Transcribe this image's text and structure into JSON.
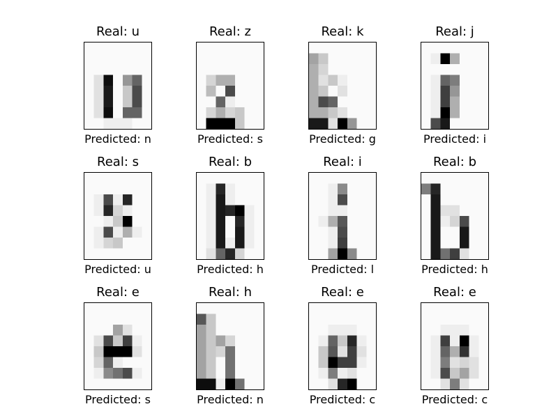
{
  "chart_data": {
    "type": "heatmap",
    "colormap": "gray_r",
    "rows": 8,
    "cols": 7,
    "panels": [
      {
        "title": "Real: u",
        "xlabel": "Predicted: n",
        "cells": [
          [
            0,
            0,
            0,
            0,
            0,
            0,
            0
          ],
          [
            0,
            0,
            0,
            0,
            0,
            0,
            0
          ],
          [
            0,
            0,
            0,
            0,
            0,
            0,
            0
          ],
          [
            0,
            0.1,
            0.95,
            0,
            0.4,
            0.6,
            0
          ],
          [
            0,
            0.1,
            0.9,
            0,
            0.2,
            0.7,
            0
          ],
          [
            0,
            0.1,
            0.9,
            0,
            0.2,
            0.7,
            0
          ],
          [
            0,
            0.1,
            0.95,
            0,
            0.6,
            0.6,
            0
          ],
          [
            0,
            0,
            0.05,
            0.05,
            0.05,
            0,
            0
          ]
        ]
      },
      {
        "title": "Real: z",
        "xlabel": "Predicted: s",
        "cells": [
          [
            0,
            0,
            0,
            0,
            0,
            0,
            0
          ],
          [
            0,
            0,
            0,
            0,
            0,
            0,
            0
          ],
          [
            0,
            0,
            0,
            0,
            0,
            0,
            0
          ],
          [
            0,
            0.15,
            0.3,
            0.3,
            0,
            0,
            0
          ],
          [
            0,
            0.25,
            0,
            0.7,
            0,
            0,
            0
          ],
          [
            0,
            0,
            0.6,
            0.05,
            0,
            0,
            0
          ],
          [
            0,
            0.15,
            0.3,
            0.15,
            0.2,
            0,
            0
          ],
          [
            0,
            1,
            1,
            1,
            0.2,
            0,
            0
          ]
        ]
      },
      {
        "title": "Real: k",
        "xlabel": "Predicted: g",
        "cells": [
          [
            0,
            0,
            0,
            0,
            0,
            0,
            0
          ],
          [
            0.35,
            0.2,
            0,
            0,
            0,
            0,
            0
          ],
          [
            0.3,
            0.15,
            0,
            0,
            0,
            0,
            0
          ],
          [
            0.3,
            0.1,
            0.2,
            0.05,
            0,
            0,
            0
          ],
          [
            0.3,
            0.2,
            0,
            0.1,
            0,
            0,
            0
          ],
          [
            0.3,
            0.7,
            0.6,
            0,
            0,
            0,
            0
          ],
          [
            0.3,
            0.3,
            0.2,
            0.1,
            0,
            0,
            0
          ],
          [
            0.9,
            0.9,
            0.1,
            1,
            0.4,
            0,
            0
          ]
        ]
      },
      {
        "title": "Real: j",
        "xlabel": "Predicted: i",
        "cells": [
          [
            0,
            0,
            0,
            0,
            0,
            0,
            0
          ],
          [
            0,
            0.05,
            1,
            0.3,
            0,
            0,
            0
          ],
          [
            0,
            0,
            0,
            0,
            0,
            0,
            0
          ],
          [
            0,
            0.05,
            0.6,
            0.5,
            0,
            0,
            0
          ],
          [
            0,
            0.05,
            0.75,
            0.4,
            0,
            0,
            0
          ],
          [
            0,
            0.05,
            0.75,
            0.3,
            0,
            0,
            0
          ],
          [
            0,
            0.05,
            1,
            0.3,
            0,
            0,
            0
          ],
          [
            0,
            0.7,
            0.9,
            0,
            0,
            0,
            0
          ]
        ]
      },
      {
        "title": "Real: s",
        "xlabel": "Predicted: u",
        "cells": [
          [
            0,
            0,
            0,
            0,
            0,
            0,
            0
          ],
          [
            0,
            0,
            0,
            0,
            0,
            0,
            0
          ],
          [
            0,
            0.05,
            0.7,
            0.05,
            0.85,
            0,
            0
          ],
          [
            0,
            0.05,
            0.85,
            0.15,
            0.05,
            0,
            0
          ],
          [
            0,
            0,
            0.05,
            0.2,
            1,
            0,
            0
          ],
          [
            0,
            0.05,
            0.7,
            0.05,
            0.3,
            0.05,
            0
          ],
          [
            0,
            0.05,
            0.15,
            0.2,
            0,
            0,
            0
          ],
          [
            0,
            0,
            0,
            0,
            0,
            0,
            0
          ]
        ]
      },
      {
        "title": "Real: b",
        "xlabel": "Predicted: h",
        "cells": [
          [
            0,
            0,
            0,
            0,
            0,
            0,
            0
          ],
          [
            0,
            0.05,
            0.85,
            0.05,
            0,
            0,
            0
          ],
          [
            0,
            0.05,
            0.9,
            0.05,
            0,
            0,
            0
          ],
          [
            0,
            0.05,
            0.9,
            0.85,
            1,
            0.05,
            0
          ],
          [
            0,
            0.05,
            0.9,
            0,
            0.85,
            0.05,
            0
          ],
          [
            0,
            0.05,
            0.9,
            0,
            0.9,
            0.05,
            0
          ],
          [
            0,
            0.05,
            0.9,
            0.05,
            0.9,
            0.05,
            0
          ],
          [
            0,
            0.1,
            0.6,
            0.85,
            0.15,
            0,
            0
          ]
        ]
      },
      {
        "title": "Real: i",
        "xlabel": "Predicted: l",
        "cells": [
          [
            0,
            0,
            0,
            0,
            0,
            0,
            0
          ],
          [
            0,
            0,
            0.05,
            0.45,
            0,
            0,
            0
          ],
          [
            0,
            0,
            0.05,
            0.7,
            0,
            0,
            0
          ],
          [
            0,
            0,
            0.05,
            0.05,
            0,
            0,
            0
          ],
          [
            0,
            0.05,
            0.3,
            0.65,
            0,
            0,
            0
          ],
          [
            0,
            0,
            0.05,
            0.7,
            0,
            0,
            0
          ],
          [
            0,
            0,
            0.05,
            0.75,
            0,
            0,
            0
          ],
          [
            0,
            0,
            0.35,
            1,
            0.45,
            0,
            0
          ]
        ]
      },
      {
        "title": "Real: b",
        "xlabel": "Predicted: h",
        "cells": [
          [
            0,
            0,
            0,
            0,
            0,
            0,
            0
          ],
          [
            0.5,
            0.85,
            0,
            0,
            0,
            0,
            0
          ],
          [
            0,
            0.9,
            0,
            0,
            0,
            0,
            0
          ],
          [
            0,
            0.9,
            0.1,
            0.1,
            0,
            0,
            0
          ],
          [
            0,
            0.9,
            0.05,
            0.15,
            0.7,
            0,
            0
          ],
          [
            0,
            0.9,
            0,
            0,
            0.9,
            0,
            0
          ],
          [
            0,
            0.9,
            0,
            0,
            0.9,
            0,
            0
          ],
          [
            0,
            0.9,
            0.55,
            0.75,
            0.1,
            0,
            0
          ]
        ]
      },
      {
        "title": "Real: e",
        "xlabel": "Predicted: s",
        "cells": [
          [
            0,
            0,
            0,
            0,
            0,
            0,
            0
          ],
          [
            0,
            0,
            0,
            0,
            0,
            0,
            0
          ],
          [
            0,
            0,
            0,
            0.35,
            0.1,
            0,
            0
          ],
          [
            0,
            0.1,
            0.7,
            0.2,
            0.75,
            0.05,
            0
          ],
          [
            0,
            0.2,
            1,
            1,
            1,
            0.1,
            0
          ],
          [
            0,
            0.15,
            0.6,
            0.05,
            0,
            0,
            0
          ],
          [
            0,
            0.05,
            0.45,
            0.55,
            0.7,
            0.05,
            0
          ],
          [
            0,
            0,
            0,
            0,
            0,
            0,
            0
          ]
        ]
      },
      {
        "title": "Real: h",
        "xlabel": "Predicted: n",
        "cells": [
          [
            0,
            0,
            0,
            0,
            0,
            0,
            0
          ],
          [
            0.65,
            0.2,
            0,
            0,
            0,
            0,
            0
          ],
          [
            0.35,
            0.2,
            0,
            0,
            0,
            0,
            0
          ],
          [
            0.35,
            0.2,
            0.35,
            0.15,
            0,
            0,
            0
          ],
          [
            0.35,
            0.2,
            0.15,
            0.55,
            0,
            0,
            0
          ],
          [
            0.35,
            0.2,
            0,
            0.55,
            0,
            0,
            0
          ],
          [
            0.35,
            0.2,
            0,
            0.55,
            0,
            0,
            0
          ],
          [
            0.95,
            0.95,
            0.05,
            1,
            0.55,
            0,
            0
          ]
        ]
      },
      {
        "title": "Real: e",
        "xlabel": "Predicted: c",
        "cells": [
          [
            0,
            0,
            0,
            0,
            0,
            0,
            0
          ],
          [
            0,
            0,
            0,
            0,
            0,
            0,
            0
          ],
          [
            0,
            0,
            0.05,
            0.05,
            0.05,
            0,
            0
          ],
          [
            0,
            0.05,
            0.6,
            0.2,
            0.85,
            0.05,
            0
          ],
          [
            0,
            0.2,
            0.65,
            0.1,
            0.75,
            0.1,
            0
          ],
          [
            0,
            0.2,
            1,
            0.75,
            0.75,
            0.05,
            0
          ],
          [
            0,
            0.05,
            0.5,
            0.05,
            0.1,
            0,
            0
          ],
          [
            0,
            0,
            0.1,
            0.85,
            1,
            0,
            0
          ]
        ]
      },
      {
        "title": "Real: e",
        "xlabel": "Predicted: c",
        "cells": [
          [
            0,
            0,
            0,
            0,
            0,
            0,
            0
          ],
          [
            0,
            0,
            0,
            0,
            0,
            0,
            0
          ],
          [
            0,
            0,
            0.05,
            0.05,
            0.05,
            0,
            0
          ],
          [
            0,
            0.05,
            0.75,
            0.05,
            1,
            0.05,
            0
          ],
          [
            0,
            0.05,
            0.6,
            0.3,
            0.8,
            0.05,
            0
          ],
          [
            0,
            0.05,
            0.5,
            0.1,
            0.15,
            0.1,
            0
          ],
          [
            0,
            0.05,
            0.7,
            0.2,
            0.35,
            0.1,
            0
          ],
          [
            0,
            0,
            0.1,
            0.5,
            0.1,
            0,
            0
          ]
        ]
      }
    ]
  }
}
